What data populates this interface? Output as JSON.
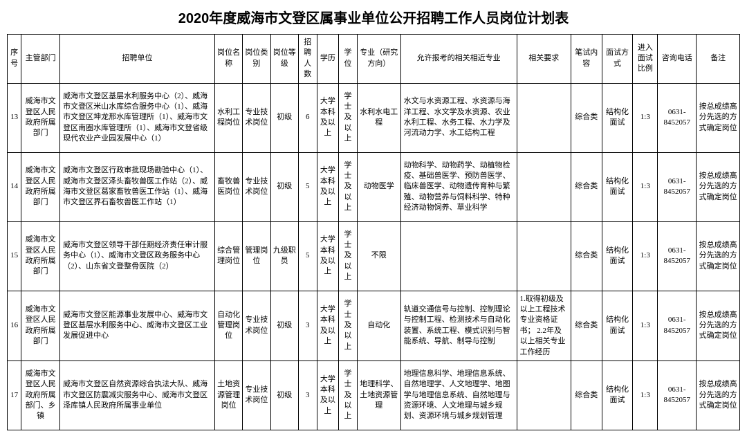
{
  "title": "2020年度威海市文登区属事业单位公开招聘工作人员岗位计划表",
  "columns": [
    "序号",
    "主管部门",
    "招聘单位",
    "岗位名称",
    "岗位类别",
    "岗位等级",
    "招聘人数",
    "学历",
    "学位",
    "专业（研究方向）",
    "允许报考的相关相近专业",
    "相关要求",
    "笔试内容",
    "面试方式",
    "进入面试比例",
    "咨询电话",
    "备注"
  ],
  "rows": [
    {
      "seq": "13",
      "dept": "威海市文登区人民政府所属部门",
      "unit": "威海市文登区基层水利服务中心（2）、威海市文登区米山水库综合服务中心（1）、威海市文登区坤龙邢水库管理所（1）、威海市文登区南圈水库管理所（1）、威海市文登省级现代农业产业园发展中心（1）",
      "posname": "水利工程岗位",
      "postype": "专业技术岗位",
      "poslevel": "初级",
      "count": "6",
      "edu": "大学本科及以上",
      "degree": "学士及以上",
      "major": "水利水电工程",
      "allow": "水文与水资源工程、水资源与海洋工程、水文学及水资源、农业水利工程、水务工程、水力学及河流动力学、水工结构工程",
      "req": "",
      "written": "综合类",
      "interview": "结构化面试",
      "ratio": "1:3",
      "tel": "0631-8452057",
      "note": "按总成绩高分先选的方式确定岗位"
    },
    {
      "seq": "14",
      "dept": "威海市文登区人民政府所属部门",
      "unit": "威海市文登区行政审批现场勘验中心（1）、威海市文登区泽头畜牧兽医工作站（2）、威海市文登区葛家畜牧兽医工作站（1）、威海市文登区界石畜牧兽医工作站（1）",
      "posname": "畜牧兽医岗位",
      "postype": "专业技术岗位",
      "poslevel": "初级",
      "count": "5",
      "edu": "大学本科及以上",
      "degree": "学士及以上",
      "major": "动物医学",
      "allow": "动物科学、动物药学、动植物检疫、基础兽医学、预防兽医学、临床兽医学、动物遗传育种与繁殖、动物营养与饲料科学、特种经济动物饲养、草业科学",
      "req": "",
      "written": "综合类",
      "interview": "结构化面试",
      "ratio": "1:3",
      "tel": "0631-8452057",
      "note": "按总成绩高分先选的方式确定岗位"
    },
    {
      "seq": "15",
      "dept": "威海市文登区人民政府所属部门",
      "unit": "威海市文登区领导干部任期经济责任审计服务中心（1）、威海市文登区政务服务中心（2）、山东省文登整骨医院（2）",
      "posname": "综合管理岗位",
      "postype": "管理岗位",
      "poslevel": "九级职员",
      "count": "5",
      "edu": "大学本科及以上",
      "degree": "学士及以上",
      "major": "不限",
      "allow": "",
      "req": "",
      "written": "综合类",
      "interview": "结构化面试",
      "ratio": "1:3",
      "tel": "0631-8452057",
      "note": "按总成绩高分先选的方式确定岗位"
    },
    {
      "seq": "16",
      "dept": "威海市文登区人民政府所属部门",
      "unit": "威海市文登区能源事业发展中心、威海市文登区基层水利服务中心、威海市文登区工业发展促进中心",
      "posname": "自动化管理岗位",
      "postype": "专业技术岗位",
      "poslevel": "初级",
      "count": "3",
      "edu": "大学本科及以上",
      "degree": "学士及以上",
      "major": "自动化",
      "allow": "轨道交通信号与控制、控制理论与控制工程、检测技术与自动化装置、系统工程、模式识别与智能系统、导航、制导与控制",
      "req": "1.取得初级及以上工程技术专业资格证书；\n2.2年及以上相关专业工作经历",
      "written": "综合类",
      "interview": "结构化面试",
      "ratio": "1:3",
      "tel": "0631-8452057",
      "note": "按总成绩高分先选的方式确定岗位"
    },
    {
      "seq": "17",
      "dept": "威海市文登区人民政府所属部门、乡镇",
      "unit": "威海市文登区自然资源综合执法大队、威海市文登区防震减灾服务中心、威海市文登区泽库镇人民政府所属事业单位",
      "posname": "土地资源管理岗位",
      "postype": "专业技术岗位",
      "poslevel": "初级",
      "count": "3",
      "edu": "大学本科及以上",
      "degree": "学士及以上",
      "major": "地理科学、土地资源管理",
      "allow": "地理信息科学、地理信息系统、自然地理学、人文地理学、地图学与地理信息系统、自然地理与资源环境、人文地理与城乡规划、资源环境与城乡规划管理",
      "req": "",
      "written": "综合类",
      "interview": "结构化面试",
      "ratio": "1:3",
      "tel": "0631-8452057",
      "note": "按总成绩高分先选的方式确定岗位"
    }
  ]
}
